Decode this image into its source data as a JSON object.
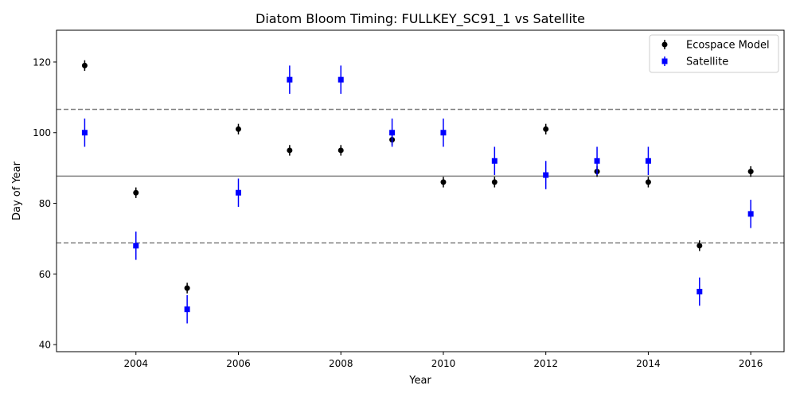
{
  "chart_data": {
    "type": "scatter",
    "title": "Diatom Bloom Timing: FULLKEY_SC91_1 vs Satellite",
    "xlabel": "Year",
    "ylabel": "Day of Year",
    "xlim": [
      2002.45,
      2016.65
    ],
    "ylim": [
      38,
      129
    ],
    "xticks": [
      2004,
      2006,
      2008,
      2010,
      2012,
      2014,
      2016
    ],
    "yticks": [
      40,
      60,
      80,
      100,
      120
    ],
    "grid": false,
    "legend_position": "top-right",
    "series": [
      {
        "name": "Ecospace Model",
        "marker": "circle",
        "color": "#000000",
        "x": [
          2003,
          2004,
          2005,
          2006,
          2007,
          2008,
          2009,
          2010,
          2011,
          2012,
          2013,
          2014,
          2015,
          2016
        ],
        "y": [
          119,
          83,
          56,
          101,
          95,
          95,
          98,
          86,
          86,
          101,
          89,
          86,
          68,
          89
        ],
        "yerr": [
          1.5,
          1.5,
          1.5,
          1.5,
          1.5,
          1.5,
          1.5,
          1.5,
          1.5,
          1.5,
          1.5,
          1.5,
          1.5,
          1.5
        ]
      },
      {
        "name": "Satellite",
        "marker": "square",
        "color": "#0000ff",
        "x": [
          2003,
          2004,
          2005,
          2006,
          2007,
          2008,
          2009,
          2010,
          2011,
          2012,
          2013,
          2014,
          2015,
          2016
        ],
        "y": [
          100,
          68,
          50,
          83,
          115,
          115,
          100,
          100,
          92,
          88,
          92,
          92,
          55,
          77
        ],
        "yerr": [
          4,
          4,
          4,
          4,
          4,
          4,
          4,
          4,
          4,
          4,
          4,
          4,
          4,
          4
        ]
      }
    ],
    "reference_lines": [
      {
        "y": 87.7,
        "style": "solid",
        "color": "#808080"
      },
      {
        "y": 106.6,
        "style": "dashed",
        "color": "#808080"
      },
      {
        "y": 68.8,
        "style": "dashed",
        "color": "#808080"
      }
    ]
  }
}
